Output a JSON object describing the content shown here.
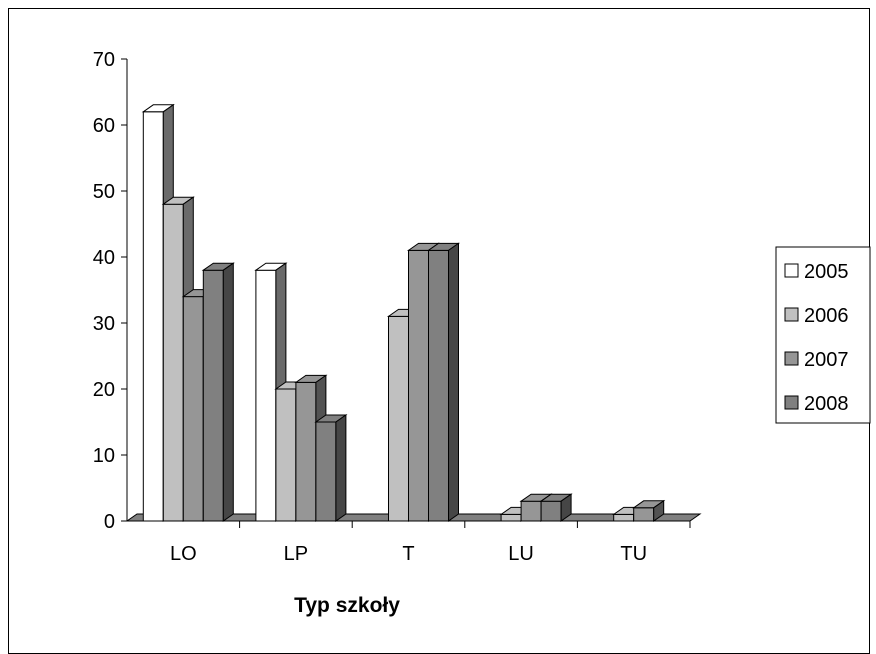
{
  "chart_data": {
    "type": "bar",
    "xlabel": "Typ szkoły",
    "ylabel": "",
    "ylim": [
      0,
      70
    ],
    "yticks": [
      0,
      10,
      20,
      30,
      40,
      50,
      60,
      70
    ],
    "categories": [
      "LO",
      "LP",
      "T",
      "LU",
      "TU"
    ],
    "series": [
      {
        "name": "2005",
        "color": "#ffffff",
        "values": [
          62,
          38,
          0,
          0,
          0
        ]
      },
      {
        "name": "2006",
        "color": "#c0c0c0",
        "values": [
          48,
          20,
          31,
          1,
          1
        ]
      },
      {
        "name": "2007",
        "color": "#969696",
        "values": [
          34,
          21,
          41,
          3,
          2
        ]
      },
      {
        "name": "2008",
        "color": "#808080",
        "values": [
          38,
          15,
          41,
          3,
          0
        ]
      }
    ],
    "legend_position": "right",
    "grid": false,
    "style": "3d-clustered-column"
  }
}
